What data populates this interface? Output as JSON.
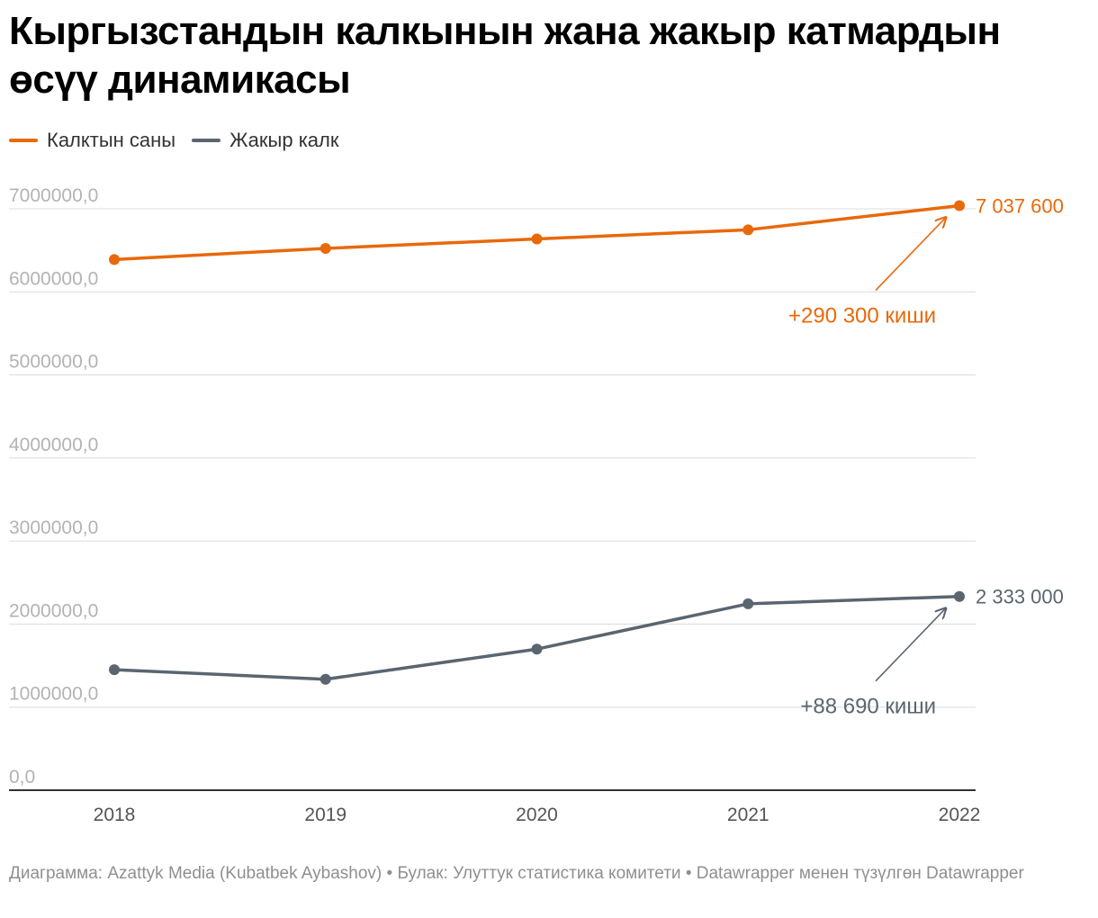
{
  "title": "Кыргызстандын калкынын жана жакыр катмардын өсүү динамикасы",
  "legend": [
    {
      "label": "Калктын саны",
      "color": "#e8690a"
    },
    {
      "label": "Жакыр калк",
      "color": "#5a6570"
    }
  ],
  "chart_data": {
    "type": "line",
    "title": "Кыргызстандын калкынын жана жакыр катмардын өсүү динамикасы",
    "x": [
      "2018",
      "2019",
      "2020",
      "2021",
      "2022"
    ],
    "y_ticks": [
      "0,0",
      "1000000,0",
      "2000000,0",
      "3000000,0",
      "4000000,0",
      "5000000,0",
      "6000000,0",
      "7000000,0"
    ],
    "y_tick_values": [
      0,
      1000000,
      2000000,
      3000000,
      4000000,
      5000000,
      6000000,
      7000000
    ],
    "ylim": [
      0,
      7000000
    ],
    "series": [
      {
        "name": "Калктын саны",
        "color": "#e8690a",
        "values": [
          6389500,
          6523500,
          6636800,
          6747300,
          7037600
        ],
        "end_label": "7 037 600",
        "annotation": "+290 300 киши"
      },
      {
        "name": "Жакыр калк",
        "color": "#5a6570",
        "values": [
          1451000,
          1336000,
          1699000,
          2244000,
          2333000
        ],
        "end_label": "2 333 000",
        "annotation": "+88 690 киши"
      }
    ]
  },
  "footer": "Диаграмма: Azattyk Media (Kubatbek Aybashov) • Булак: Улуттук статистика комитети • Datawrapper менен түзүлгөн Datawrapper"
}
